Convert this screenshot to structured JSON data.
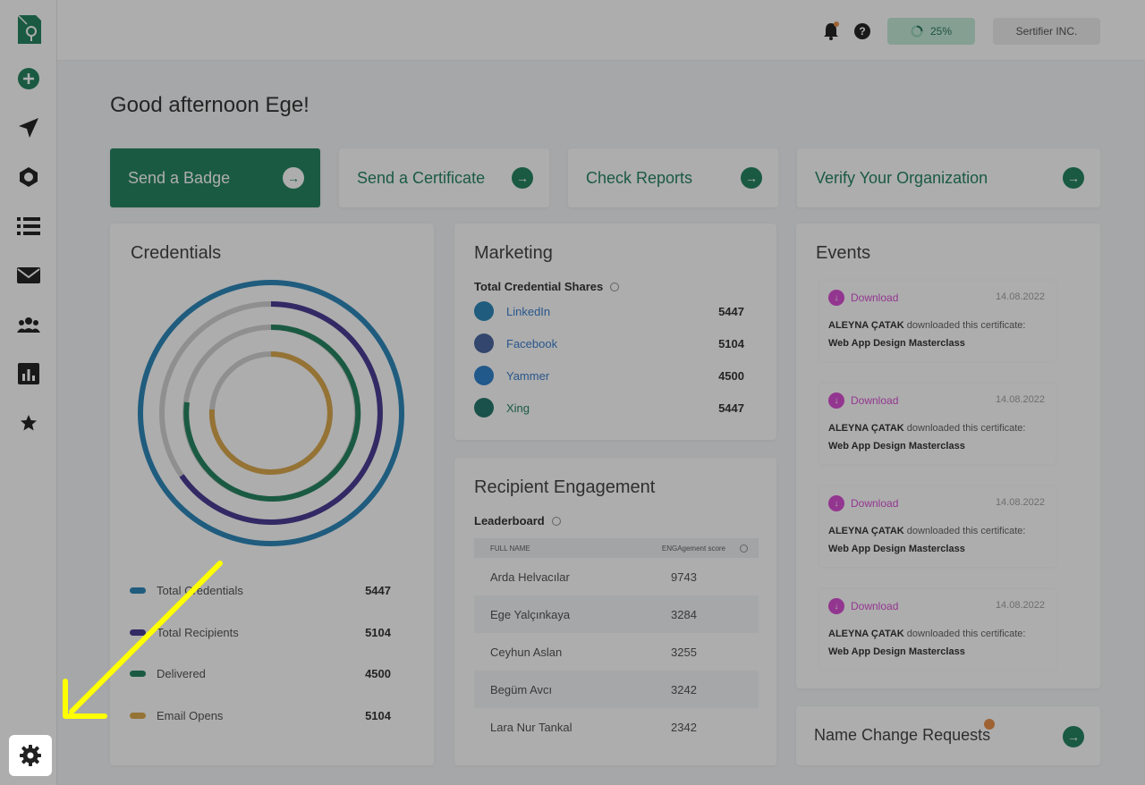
{
  "greeting": "Good afternoon Ege!",
  "topbar": {
    "progress_label": "25%",
    "org_name": "Sertifier INC.",
    "help_label": "?"
  },
  "actions": [
    {
      "label": "Send a Badge"
    },
    {
      "label": "Send a Certificate"
    },
    {
      "label": "Check Reports"
    },
    {
      "label": "Verify Your Organization"
    }
  ],
  "credentials": {
    "title": "Credentials",
    "legend": [
      {
        "label": "Total Credentials",
        "value": "5447",
        "color": "#1a7db3"
      },
      {
        "label": "Total Recipients",
        "value": "5104",
        "color": "#3a2a8c"
      },
      {
        "label": "Delivered",
        "value": "4500",
        "color": "#137a55"
      },
      {
        "label": "Email Opens",
        "value": "5104",
        "color": "#d9a23e"
      }
    ]
  },
  "marketing": {
    "title": "Marketing",
    "subtitle": "Total Credential Shares",
    "shares": [
      {
        "name": "LinkedIn",
        "value": "5447",
        "color": "#1a7db3"
      },
      {
        "name": "Facebook",
        "value": "5104",
        "color": "#3b5998"
      },
      {
        "name": "Yammer",
        "value": "4500",
        "color": "#1f78c8"
      },
      {
        "name": "Xing",
        "value": "5447",
        "color": "#126b5f"
      }
    ]
  },
  "engagement": {
    "title": "Recipient Engagement",
    "subtitle": "Leaderboard",
    "col_name": "FULL NAME",
    "col_score": "ENGAgement score",
    "rows": [
      {
        "name": "Arda Helvacılar",
        "score": "9743"
      },
      {
        "name": "Ege Yalçınkaya",
        "score": "3284"
      },
      {
        "name": "Ceyhun Aslan",
        "score": "3255"
      },
      {
        "name": "Begüm Avcı",
        "score": "3242"
      },
      {
        "name": "Lara Nur Tankal",
        "score": "2342"
      }
    ]
  },
  "events": {
    "title": "Events",
    "items": [
      {
        "type": "Download",
        "date": "14.08.2022",
        "user": "ALEYNA ÇATAK",
        "action": "downloaded this certificate:",
        "course": "Web App Design Masterclass"
      },
      {
        "type": "Download",
        "date": "14.08.2022",
        "user": "ALEYNA ÇATAK",
        "action": "downloaded this certificate:",
        "course": "Web App Design Masterclass"
      },
      {
        "type": "Download",
        "date": "14.08.2022",
        "user": "ALEYNA ÇATAK",
        "action": "downloaded this certificate:",
        "course": "Web App Design Masterclass"
      },
      {
        "type": "Download",
        "date": "14.08.2022",
        "user": "ALEYNA ÇATAK",
        "action": "downloaded this certificate:",
        "course": "Web App Design Masterclass"
      }
    ]
  },
  "name_change": {
    "title": "Name Change Requests"
  },
  "accent_color": "#137a55",
  "sidebar_icons": [
    "add-circle-icon",
    "send-icon",
    "badge-icon",
    "list-icon",
    "mail-icon",
    "users-icon",
    "report-icon",
    "star-icon",
    "settings-icon"
  ]
}
